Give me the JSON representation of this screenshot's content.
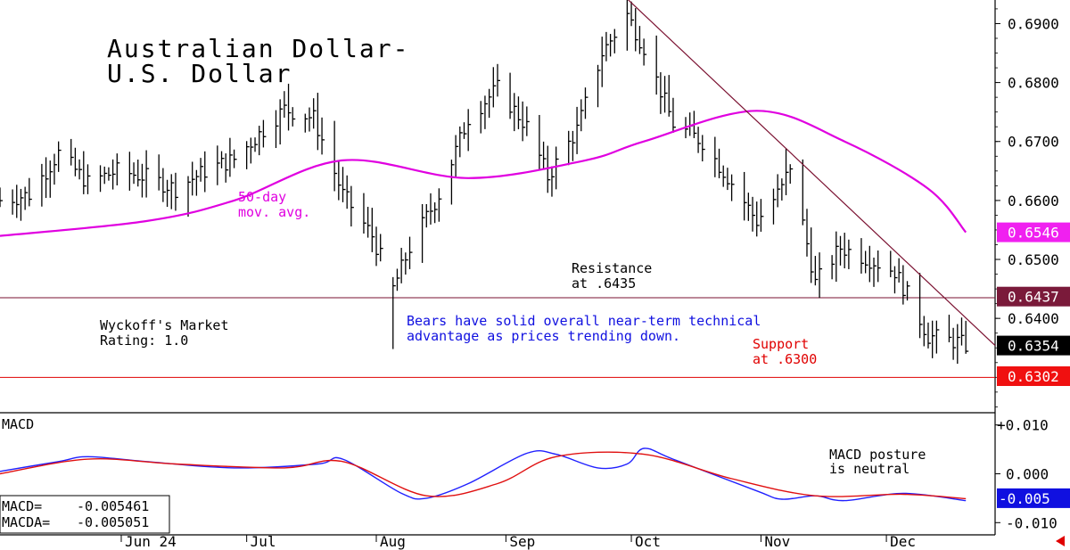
{
  "chart_data": [
    {
      "type": "candlestick",
      "title_lines": [
        "Australian Dollar-",
        "U.S. Dollar"
      ],
      "y_axis": {
        "range": [
          0.624,
          0.694
        ],
        "ticks": [
          {
            "value": 0.69,
            "label": "0.6900"
          },
          {
            "value": 0.68,
            "label": "0.6800"
          },
          {
            "value": 0.67,
            "label": "0.6700"
          },
          {
            "value": 0.66,
            "label": "0.6600"
          },
          {
            "value": 0.65,
            "label": "0.6500"
          },
          {
            "value": 0.64,
            "label": "0.6400"
          }
        ]
      },
      "x_axis": {
        "range": [
          "2024-05-03",
          "2024-12-27"
        ],
        "ticks": [
          {
            "date": "2024-06-01",
            "label": "Jun 24"
          },
          {
            "date": "2024-07-01",
            "label": "Jul"
          },
          {
            "date": "2024-08-01",
            "label": "Aug"
          },
          {
            "date": "2024-09-01",
            "label": "Sep"
          },
          {
            "date": "2024-10-01",
            "label": "Oct"
          },
          {
            "date": "2024-11-01",
            "label": "Nov"
          },
          {
            "date": "2024-12-01",
            "label": "Dec"
          }
        ]
      },
      "price_anchors": [
        [
          "2024-05-03",
          0.66
        ],
        [
          "2024-05-10",
          0.661
        ],
        [
          "2024-05-17",
          0.668
        ],
        [
          "2024-05-24",
          0.663
        ],
        [
          "2024-05-31",
          0.665
        ],
        [
          "2024-06-07",
          0.664
        ],
        [
          "2024-06-14",
          0.662
        ],
        [
          "2024-06-21",
          0.665
        ],
        [
          "2024-06-28",
          0.667
        ],
        [
          "2024-07-05",
          0.672
        ],
        [
          "2024-07-10",
          0.6755
        ],
        [
          "2024-07-17",
          0.674
        ],
        [
          "2024-07-24",
          0.661
        ],
        [
          "2024-07-31",
          0.654
        ],
        [
          "2024-08-05",
          0.645
        ],
        [
          "2024-08-09",
          0.652
        ],
        [
          "2024-08-16",
          0.661
        ],
        [
          "2024-08-23",
          0.674
        ],
        [
          "2024-08-30",
          0.679
        ],
        [
          "2024-09-06",
          0.6725
        ],
        [
          "2024-09-11",
          0.664
        ],
        [
          "2024-09-18",
          0.672
        ],
        [
          "2024-09-24",
          0.685
        ],
        [
          "2024-09-30",
          0.6915
        ],
        [
          "2024-10-04",
          0.686
        ],
        [
          "2024-10-11",
          0.673
        ],
        [
          "2024-10-18",
          0.67
        ],
        [
          "2024-10-25",
          0.663
        ],
        [
          "2024-10-31",
          0.6565
        ],
        [
          "2024-11-06",
          0.662
        ],
        [
          "2024-11-08",
          0.666
        ],
        [
          "2024-11-14",
          0.646
        ],
        [
          "2024-11-20",
          0.652
        ],
        [
          "2024-11-27",
          0.65
        ],
        [
          "2024-12-03",
          0.648
        ],
        [
          "2024-12-06",
          0.644
        ],
        [
          "2024-12-11",
          0.637
        ],
        [
          "2024-12-18",
          0.636
        ],
        [
          "2024-12-20",
          0.6354
        ]
      ],
      "wicks": [
        {
          "date": "2024-07-11",
          "high": 0.6798
        },
        {
          "date": "2024-08-05",
          "low": 0.6348,
          "high": 0.647
        },
        {
          "date": "2024-09-30",
          "high": 0.6942
        },
        {
          "date": "2024-11-07",
          "high": 0.6688
        },
        {
          "date": "2024-12-20",
          "low": 0.634
        }
      ],
      "moving_average": {
        "points": [
          [
            "2024-05-03",
            0.654
          ],
          [
            "2024-06-07",
            0.6565
          ],
          [
            "2024-06-28",
            0.66
          ],
          [
            "2024-07-24",
            0.6668
          ],
          [
            "2024-08-23",
            0.6638
          ],
          [
            "2024-09-20",
            0.6668
          ],
          [
            "2024-10-04",
            0.67
          ],
          [
            "2024-10-31",
            0.6752
          ],
          [
            "2024-11-21",
            0.67
          ],
          [
            "2024-12-11",
            0.662
          ],
          [
            "2024-12-20",
            0.6546
          ]
        ],
        "label_lines": [
          "50-day",
          "mov. avg."
        ],
        "color": "#e000e0"
      },
      "trendline": {
        "from": [
          "2024-09-30",
          0.6942
        ],
        "to": [
          "2024-12-27",
          0.6354
        ],
        "color": "#7a1030"
      },
      "hlines": [
        {
          "value": 0.6435,
          "color": "#7a1030"
        },
        {
          "value": 0.63,
          "color": "#e00000"
        }
      ],
      "price_boxes": [
        {
          "value": 0.6546,
          "label": "0.6546",
          "color": "#f020f0"
        },
        {
          "value": 0.6437,
          "label": "0.6437",
          "color": "#7a1a3a"
        },
        {
          "value": 0.6354,
          "label": "0.6354",
          "color": "#000000"
        },
        {
          "value": 0.6302,
          "label": "0.6302",
          "color": "#f01010"
        }
      ],
      "annotations": {
        "resistance": [
          "Resistance",
          "at .6435"
        ],
        "support": [
          "Support",
          "at .6300"
        ],
        "rating": [
          "Wyckoff's Market",
          "Rating: 1.0"
        ],
        "bears": [
          "Bears have solid overall near-term technical",
          "advantage as prices trending down."
        ]
      }
    },
    {
      "type": "line",
      "title": "MACD",
      "y_axis": {
        "range": [
          -0.0125,
          0.0125
        ],
        "ticks": [
          {
            "value": 0.01,
            "label": "+0.010"
          },
          {
            "value": 0.0,
            "label": "0.000"
          },
          {
            "value": -0.01,
            "label": "-0.010"
          }
        ]
      },
      "series": [
        {
          "key": "macd",
          "color": "#2020ff",
          "points": [
            [
              "2024-05-03",
              0.0005
            ],
            [
              "2024-05-17",
              0.0025
            ],
            [
              "2024-05-24",
              0.0035
            ],
            [
              "2024-06-07",
              0.0025
            ],
            [
              "2024-06-28",
              0.0012
            ],
            [
              "2024-07-18",
              0.002
            ],
            [
              "2024-07-24",
              0.003
            ],
            [
              "2024-08-07",
              -0.004
            ],
            [
              "2024-08-13",
              -0.005
            ],
            [
              "2024-08-23",
              -0.002
            ],
            [
              "2024-09-06",
              0.0042
            ],
            [
              "2024-09-13",
              0.004
            ],
            [
              "2024-09-23",
              0.0012
            ],
            [
              "2024-09-30",
              0.002
            ],
            [
              "2024-10-04",
              0.0052
            ],
            [
              "2024-10-11",
              0.003
            ],
            [
              "2024-10-31",
              -0.0035
            ],
            [
              "2024-11-06",
              -0.0052
            ],
            [
              "2024-11-14",
              -0.0045
            ],
            [
              "2024-11-21",
              -0.0055
            ],
            [
              "2024-12-05",
              -0.004
            ],
            [
              "2024-12-20",
              -0.0055
            ]
          ]
        },
        {
          "key": "macda",
          "color": "#e01010",
          "points": [
            [
              "2024-05-03",
              0.0
            ],
            [
              "2024-05-24",
              0.003
            ],
            [
              "2024-06-14",
              0.002
            ],
            [
              "2024-07-10",
              0.0012
            ],
            [
              "2024-07-24",
              0.0025
            ],
            [
              "2024-08-13",
              -0.0045
            ],
            [
              "2024-08-30",
              -0.002
            ],
            [
              "2024-09-13",
              0.0035
            ],
            [
              "2024-10-04",
              0.004
            ],
            [
              "2024-10-25",
              -0.001
            ],
            [
              "2024-11-14",
              -0.0045
            ],
            [
              "2024-12-05",
              -0.0042
            ],
            [
              "2024-12-20",
              -0.0051
            ]
          ]
        }
      ],
      "legend": {
        "macd_label": "MACD=",
        "macd_value": "-0.005461",
        "macda_label": "MACDA=",
        "macda_value": "-0.005051"
      },
      "price_box": {
        "value": -0.005,
        "label": "-0.005",
        "color": "#1010e0"
      },
      "annotation": [
        "MACD posture",
        "is neutral"
      ]
    }
  ],
  "ui": {
    "back_arrow_color": "#e00000"
  }
}
